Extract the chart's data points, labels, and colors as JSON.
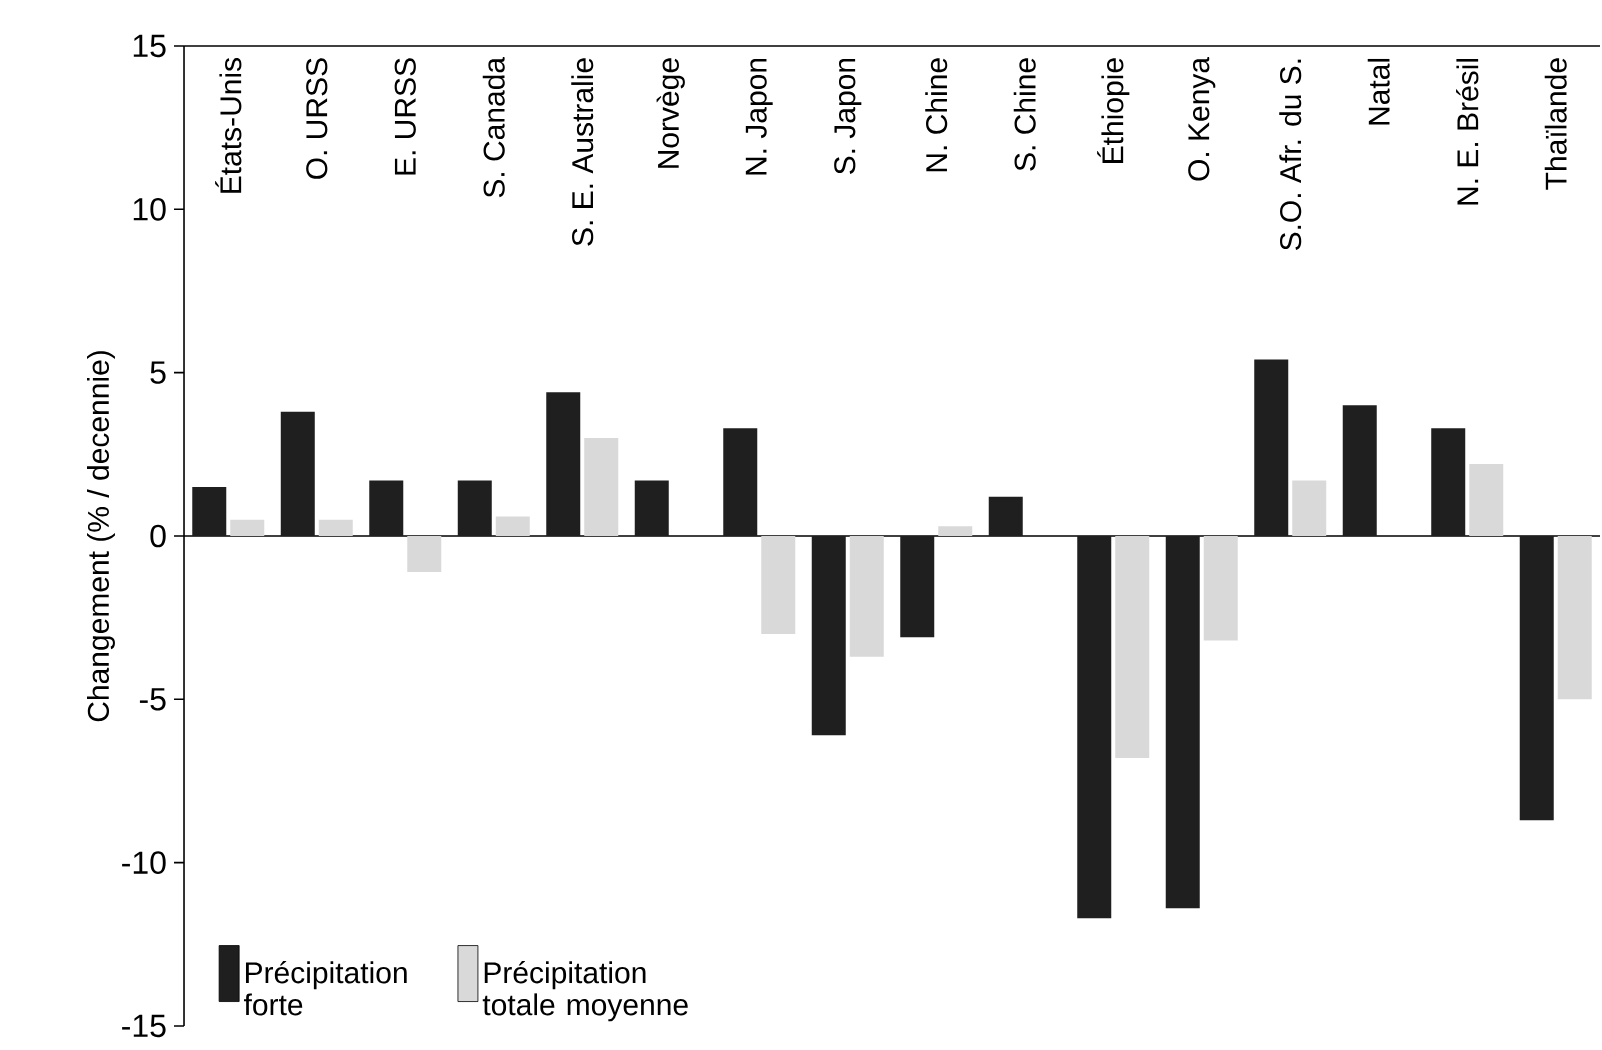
{
  "chart_data": {
    "type": "bar",
    "ylabel": "Changement (% / decennie)",
    "categories": [
      "États-Unis",
      "O. URSS",
      "E. URSS",
      "S. Canada",
      "S. E. Australie",
      "Norvège",
      "N. Japon",
      "S. Japon",
      "N. Chine",
      "S. Chine",
      "Éthiopie",
      "O. Kenya",
      "S.O. Afr. du S.",
      "Natal",
      "N. E. Brésil",
      "Thaïlande"
    ],
    "series": [
      {
        "name": "Précipitation forte",
        "color": "#1f1f1f",
        "values": [
          1.5,
          3.8,
          1.7,
          1.7,
          4.4,
          1.7,
          3.3,
          -6.1,
          -3.1,
          1.2,
          -11.7,
          -11.4,
          5.4,
          4.0,
          3.3,
          -8.7
        ]
      },
      {
        "name": "Précipitation totale moyenne",
        "color": "#d9d9d9",
        "values": [
          0.5,
          0.5,
          -1.1,
          0.6,
          3.0,
          0,
          -3.0,
          -3.7,
          0.3,
          0,
          -6.8,
          -3.2,
          1.7,
          0,
          2.2,
          -5.0
        ]
      }
    ],
    "ylim": [
      -15,
      15
    ],
    "yticks": [
      -15,
      -10,
      -5,
      0,
      5,
      10,
      15
    ],
    "legend": "bottom left"
  }
}
